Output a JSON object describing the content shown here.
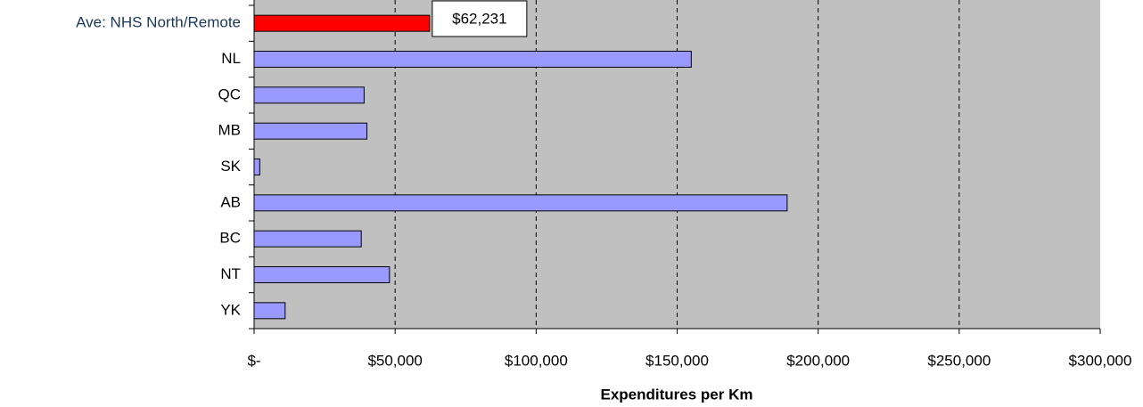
{
  "chart_data": {
    "type": "hbar",
    "x_label": "Expenditures per Km",
    "categories": [
      "Ave: NHS North/Remote",
      "NL",
      "QC",
      "MB",
      "SK",
      "AB",
      "BC",
      "NT",
      "YK"
    ],
    "values": [
      62231,
      155000,
      39000,
      40000,
      2000,
      189000,
      38000,
      48000,
      11000
    ],
    "value_labels": [
      "$62,231",
      null,
      null,
      null,
      null,
      null,
      null,
      null,
      null
    ],
    "colors": [
      "#ff0000",
      "#9999ff",
      "#9999ff",
      "#9999ff",
      "#9999ff",
      "#9999ff",
      "#9999ff",
      "#9999ff",
      "#9999ff"
    ],
    "category_label_colors": [
      "#17375e",
      "#000000",
      "#000000",
      "#000000",
      "#000000",
      "#000000",
      "#000000",
      "#000000",
      "#000000"
    ],
    "xlim": [
      0,
      300000
    ],
    "xticks": [
      {
        "value": 0,
        "label": "$-"
      },
      {
        "value": 50000,
        "label": "$50,000"
      },
      {
        "value": 100000,
        "label": "$100,000"
      },
      {
        "value": 150000,
        "label": "$150,000"
      },
      {
        "value": 200000,
        "label": "$200,000"
      },
      {
        "value": 250000,
        "label": "$250,000"
      },
      {
        "value": 300000,
        "label": "$300,000"
      }
    ],
    "grid": true,
    "plot_background": "#c0c0c0"
  }
}
